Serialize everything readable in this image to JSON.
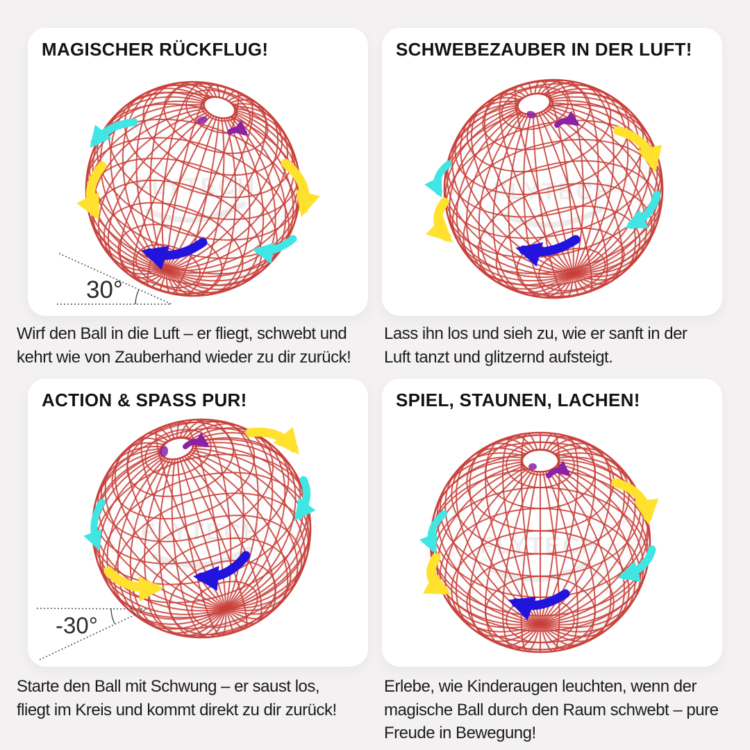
{
  "page": {
    "background": "#f3f1f2",
    "card_background": "#ffffff"
  },
  "panels": [
    {
      "title": "MAGISCHER RÜCKFLUG!",
      "angle_label": "30°",
      "caption_lines": [
        "Wirf den Ball in die Luft – er fliegt, schwebt und",
        "kehrt wie von Zauberhand wieder zu dir zurück!"
      ]
    },
    {
      "title": "SCHWEBEZAUBER IN DER LUFT!",
      "angle_label": "",
      "caption_lines": [
        "Lass ihn los und sieh zu, wie er sanft in der",
        "Luft tanzt und glitzernd aufsteigt."
      ]
    },
    {
      "title": "ACTION & SPASS PUR!",
      "angle_label": "-30°",
      "caption_lines": [
        "Starte den Ball mit Schwung – er saust los,",
        "fliegt im Kreis und kommt direkt zu dir zurück!"
      ]
    },
    {
      "title": "SPIEL, STAUNEN, LACHEN!",
      "angle_label": "",
      "caption_lines": [
        "Erlebe, wie Kinderaugen leuchten, wenn der",
        "magische Ball durch den Raum schwebt – pure",
        "Freude in Bewegung!"
      ]
    }
  ],
  "ball": {
    "watermark": "FLYTECH",
    "colors": {
      "wire": "#c8403a",
      "arrow_blue": "#2214dd",
      "arrow_cyan": "#3fe6e4",
      "arrow_yellow": "#ffe12e",
      "arrow_purple": "#8b22a5",
      "annotation": "#4a4a4a",
      "watermark_gray": "#8d8d8d"
    }
  }
}
